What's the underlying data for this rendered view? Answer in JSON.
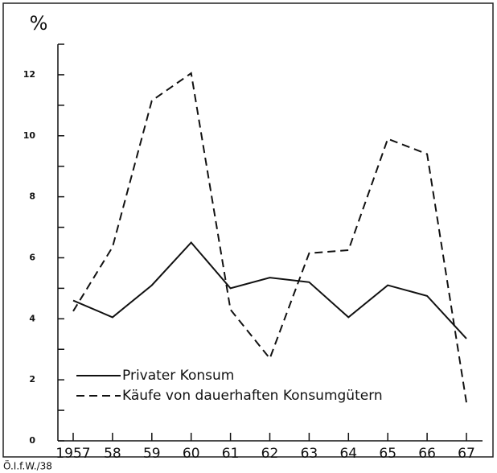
{
  "chart_data": {
    "type": "line",
    "y_axis_label": "%",
    "footer": "Ö.I.f.W./38",
    "categories": [
      "1957",
      "58",
      "59",
      "60",
      "61",
      "62",
      "63",
      "64",
      "65",
      "66",
      "67"
    ],
    "series": [
      {
        "name": "Privater Konsum",
        "color": "#111111",
        "dash": "solid",
        "values": [
          4.6,
          4.05,
          5.1,
          6.5,
          5.0,
          5.35,
          5.2,
          4.05,
          5.1,
          4.75,
          3.35
        ]
      },
      {
        "name": "Käufe von dauerhaften Konsumgütern",
        "color": "#111111",
        "dash": "dashed",
        "values": [
          4.25,
          6.35,
          11.15,
          12.05,
          4.3,
          2.7,
          6.15,
          6.25,
          9.9,
          9.4,
          1.25
        ]
      }
    ],
    "ylim": [
      0,
      13
    ],
    "yticks": [
      0,
      2,
      4,
      6,
      8,
      10,
      12
    ],
    "yticks_minor": [
      1,
      3,
      5,
      7,
      9,
      11,
      13
    ],
    "legend": "lower left"
  }
}
